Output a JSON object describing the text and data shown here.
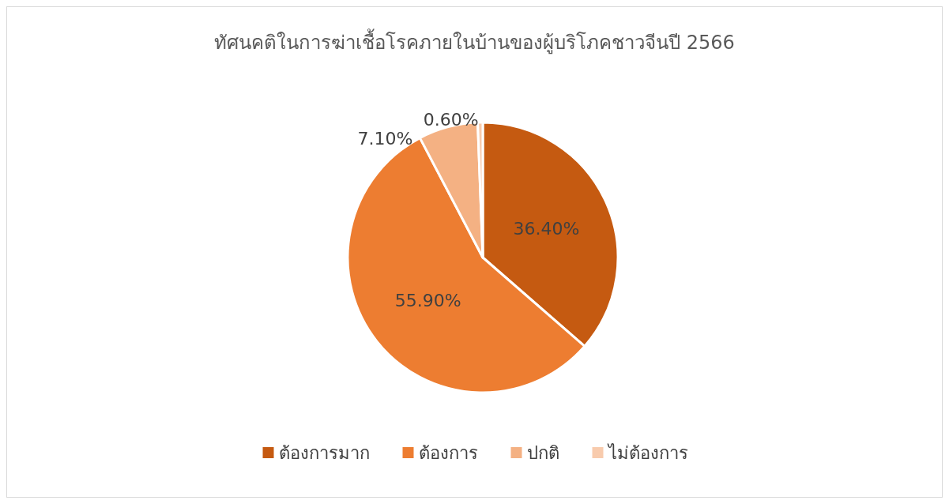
{
  "chart_data": {
    "type": "pie",
    "title": "ทัศนคติในการฆ่าเชื้อโรคภายในบ้านของผู้บริโภคชาวจีนปี 2566",
    "categories": [
      "ต้องการมาก",
      "ต้องการ",
      "ปกติ",
      "ไม่ต้องการ"
    ],
    "values": [
      36.4,
      55.9,
      7.1,
      0.6
    ],
    "value_labels": [
      "36.40%",
      "55.90%",
      "7.10%",
      "0.60%"
    ],
    "colors": [
      "#c55a11",
      "#ed7d31",
      "#f4b183",
      "#f8cbad"
    ],
    "legend": "bottom"
  }
}
